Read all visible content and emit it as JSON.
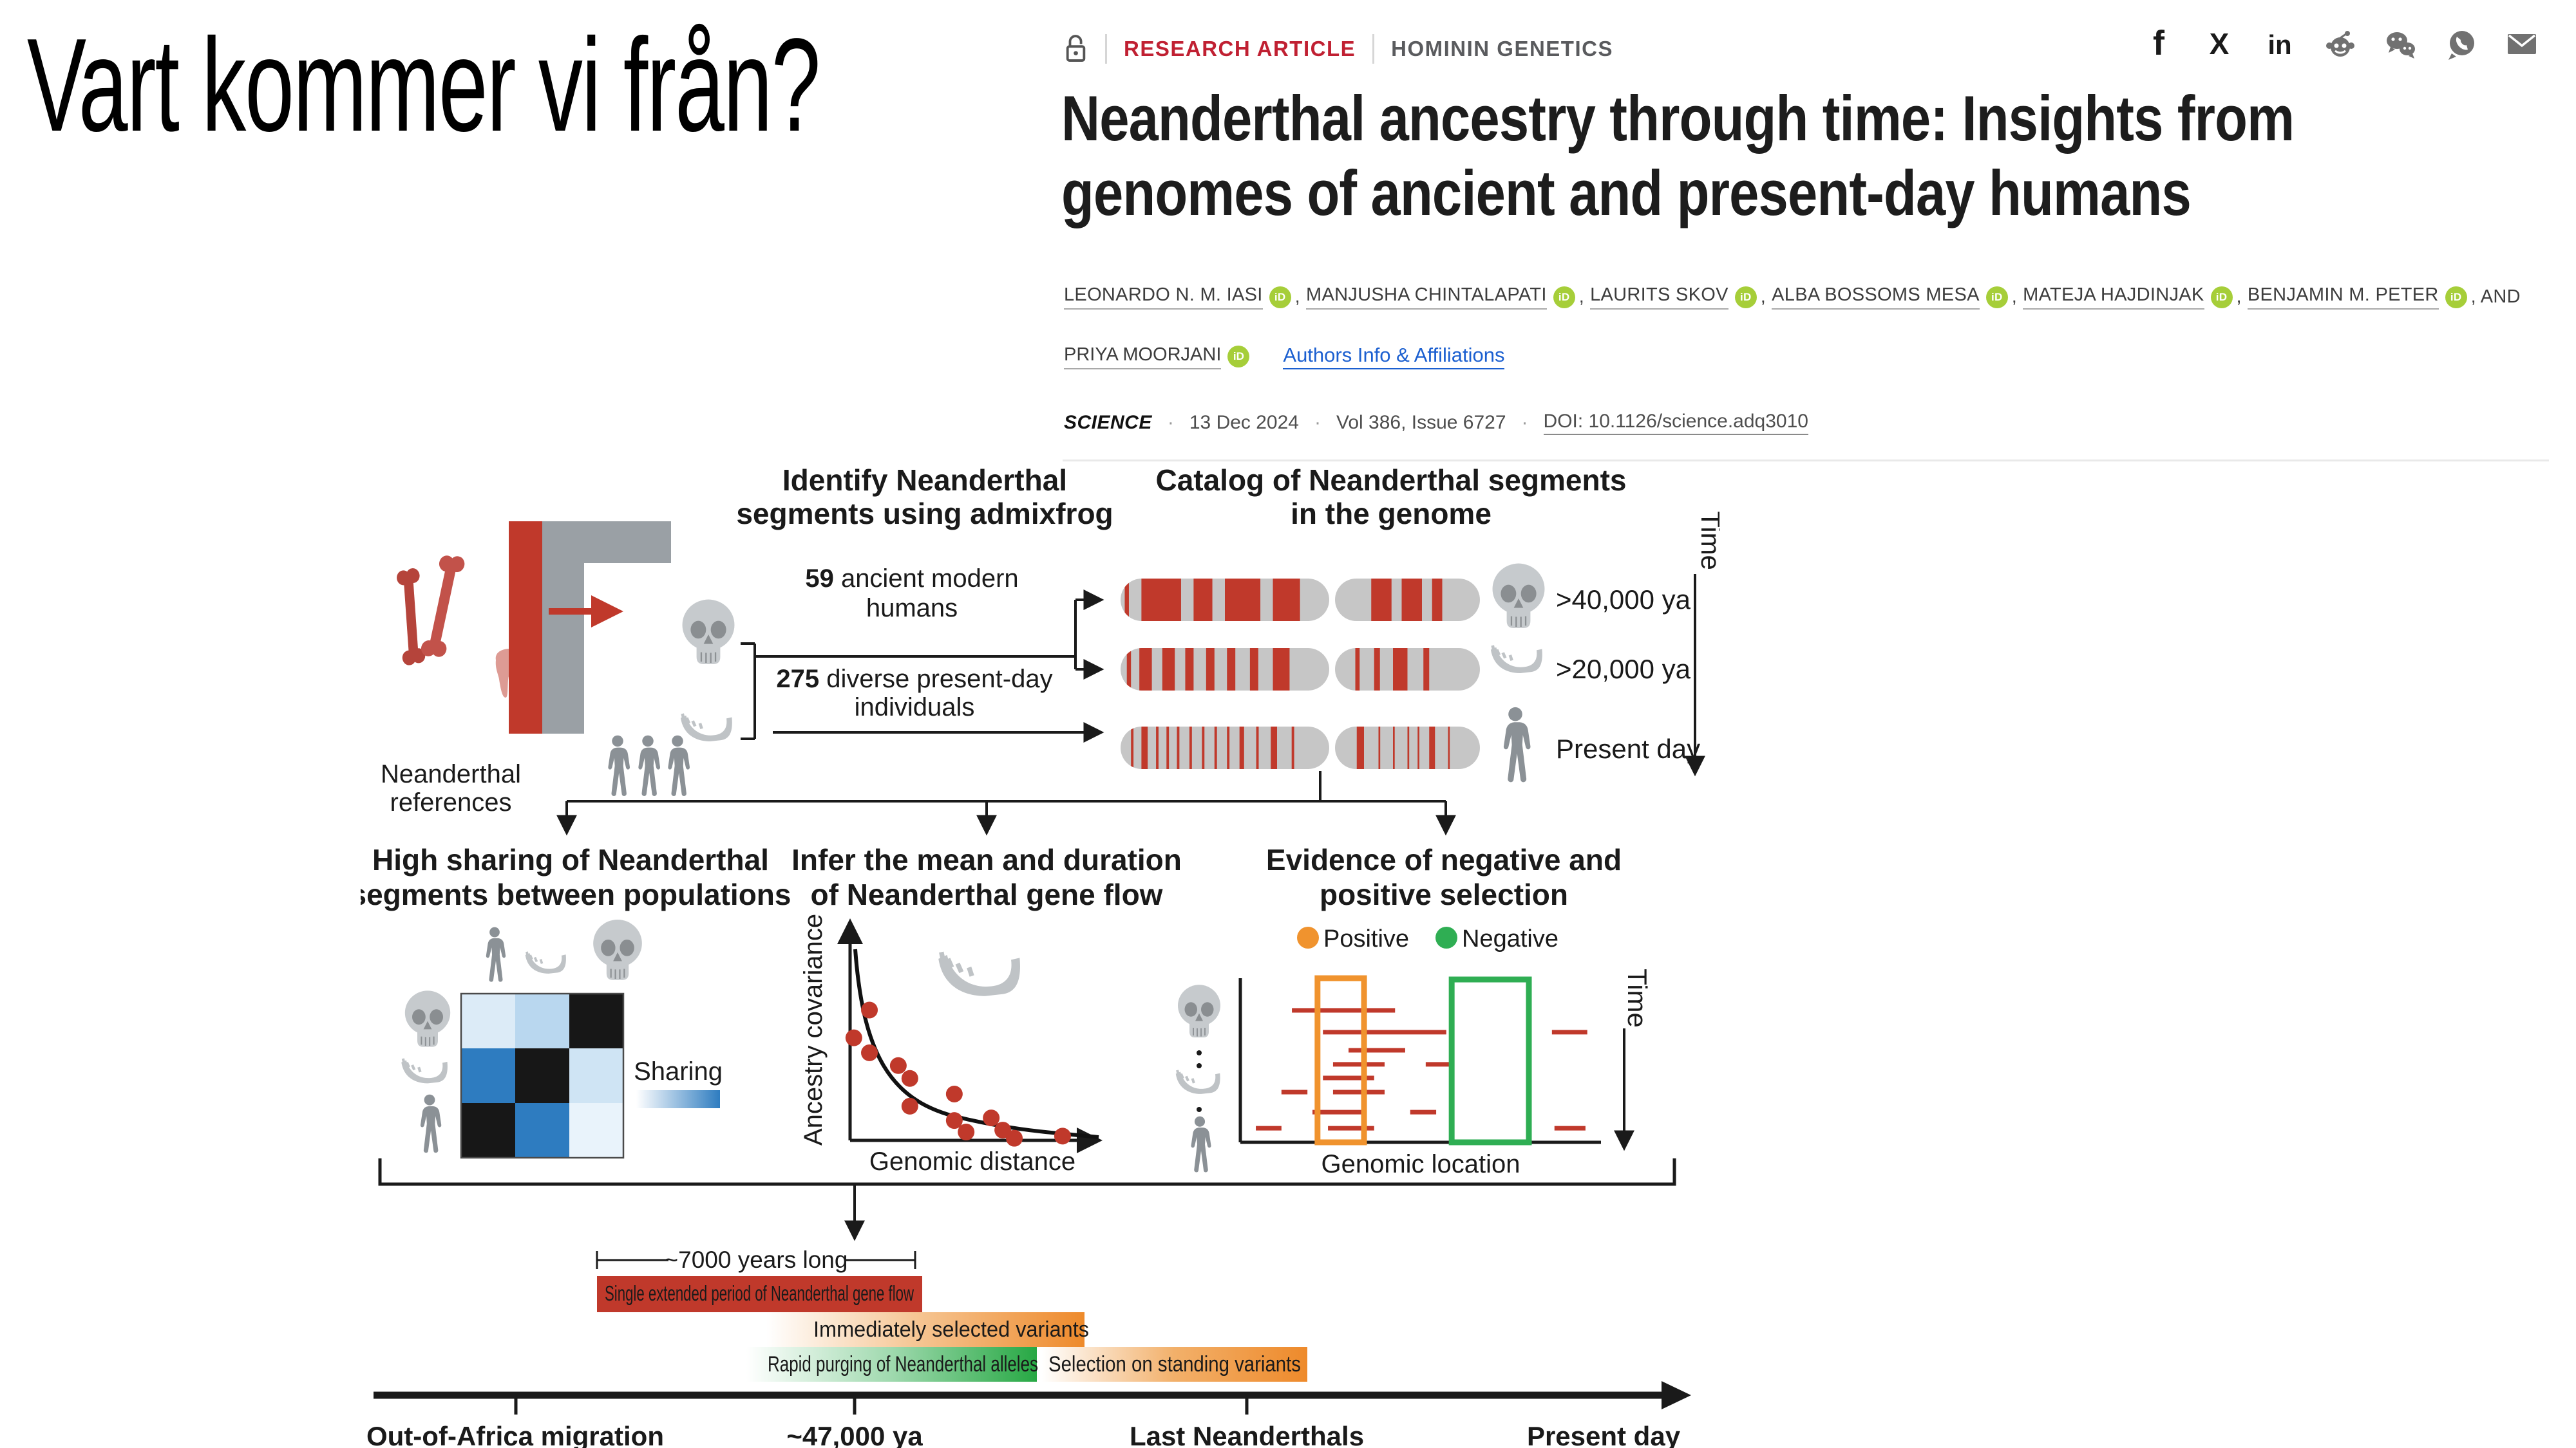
{
  "slide": {
    "title": "Vart kommer vi från?"
  },
  "article": {
    "badge": "RESEARCH ARTICLE",
    "section": "HOMININ GENETICS",
    "title_line1": "Neanderthal ancestry through time: Insights from",
    "title_line2": "genomes of ancient and present-day humans",
    "authors": [
      "LEONARDO N. M. IASI",
      "MANJUSHA CHINTALAPATI",
      "LAURITS SKOV",
      "ALBA BOSSOMS MESA",
      "MATEJA HAJDINJAK",
      "BENJAMIN M. PETER",
      "PRIYA MOORJANI"
    ],
    "author_sep": ",",
    "author_and": ", AND",
    "orcid_label": "iD",
    "orcid_color": "#a6ce39",
    "affiliations_link": "Authors Info & Affiliations",
    "journal": "SCIENCE",
    "date": "13 Dec 2024",
    "volume": "Vol 386, Issue 6727",
    "doi": "DOI: 10.1126/science.adq3010",
    "meta_dot": "·",
    "badge_color": "#c02032",
    "social_icons": [
      "facebook-icon",
      "x-icon",
      "linkedin-icon",
      "reddit-icon",
      "wechat-icon",
      "whatsapp-icon",
      "email-icon"
    ]
  },
  "figure": {
    "refs_label_l1": "Neanderthal",
    "refs_label_l2": "references",
    "identify_l1": "Identify Neanderthal",
    "identify_l2": "segments using admixfrog",
    "group59_count": "59",
    "group59_rest": " ancient modern",
    "group59_l2": "humans",
    "group275_count": "275",
    "group275_rest": " diverse present-day",
    "group275_l2": "individuals",
    "catalog_l1": "Catalog of Neanderthal segments",
    "catalog_l2": "in the genome",
    "time_label": "Time",
    "band_color": "#c0392b",
    "chromosome_color": "#c6c6c6",
    "catalog_rows": [
      {
        "age": ">40,000 ya",
        "icon": "skull",
        "bands_a": [
          [
            0.02,
            0.04
          ],
          [
            0.1,
            0.29
          ],
          [
            0.35,
            0.44
          ],
          [
            0.5,
            0.67
          ],
          [
            0.73,
            0.86
          ]
        ],
        "bands_b": [
          [
            0.25,
            0.39
          ],
          [
            0.46,
            0.6
          ],
          [
            0.67,
            0.74
          ]
        ]
      },
      {
        "age": ">20,000 ya",
        "icon": "jaw",
        "bands_a": [
          [
            0.03,
            0.05
          ],
          [
            0.09,
            0.15
          ],
          [
            0.2,
            0.26
          ],
          [
            0.31,
            0.35
          ],
          [
            0.41,
            0.45
          ],
          [
            0.51,
            0.55
          ],
          [
            0.62,
            0.66
          ],
          [
            0.73,
            0.81
          ]
        ],
        "bands_b": [
          [
            0.14,
            0.17
          ],
          [
            0.27,
            0.31
          ],
          [
            0.4,
            0.5
          ],
          [
            0.61,
            0.65
          ]
        ]
      },
      {
        "age": "Present day",
        "icon": "person",
        "bands_a": [
          [
            0.05,
            0.062
          ],
          [
            0.1,
            0.13
          ],
          [
            0.17,
            0.182
          ],
          [
            0.22,
            0.232
          ],
          [
            0.27,
            0.282
          ],
          [
            0.33,
            0.342
          ],
          [
            0.39,
            0.402
          ],
          [
            0.45,
            0.462
          ],
          [
            0.51,
            0.522
          ],
          [
            0.57,
            0.592
          ],
          [
            0.65,
            0.662
          ],
          [
            0.72,
            0.75
          ],
          [
            0.82,
            0.832
          ]
        ],
        "bands_b": [
          [
            0.15,
            0.2
          ],
          [
            0.3,
            0.312
          ],
          [
            0.4,
            0.412
          ],
          [
            0.5,
            0.512
          ],
          [
            0.57,
            0.582
          ],
          [
            0.65,
            0.69
          ],
          [
            0.78,
            0.792
          ]
        ]
      }
    ],
    "panel1": {
      "title_l1": "High sharing of Neanderthal",
      "title_l2": "segments between populations",
      "legend": "Sharing",
      "heatmap": [
        [
          "#dcebf7",
          "#b9d7ef",
          "#171717"
        ],
        [
          "#2e7cc0",
          "#171717",
          "#cfe4f4"
        ],
        [
          "#171717",
          "#2e7cc0",
          "#e9f3fb"
        ]
      ],
      "row_icons": [
        "skull",
        "jaw",
        "person"
      ],
      "col_icons": [
        "person",
        "jaw",
        "skull"
      ]
    },
    "panel2": {
      "title_l1": "Infer the mean and duration",
      "title_l2": "of  Neanderthal gene flow",
      "ylabel": "Ancestry covariance",
      "xlabel": "Genomic distance",
      "dot_color": "#c0392b",
      "points": [
        [
          0.077,
          0.61
        ],
        [
          0.015,
          0.48
        ],
        [
          0.077,
          0.41
        ],
        [
          0.192,
          0.35
        ],
        [
          0.238,
          0.29
        ],
        [
          0.415,
          0.217
        ],
        [
          0.238,
          0.16
        ],
        [
          0.415,
          0.093
        ],
        [
          0.462,
          0.039
        ],
        [
          0.562,
          0.105
        ],
        [
          0.608,
          0.048
        ],
        [
          0.654,
          0.01
        ],
        [
          0.846,
          0.02
        ]
      ]
    },
    "panel3": {
      "title_l1": "Evidence of negative and",
      "title_l2": "positive selection",
      "legend_positive": "Positive",
      "legend_negative": "Negative",
      "positive_color": "#f0932e",
      "negative_color": "#2fae53",
      "segment_color": "#c0392b",
      "xlabel": "Genomic location",
      "boxes": {
        "positive": [
          0.214,
          0.343
        ],
        "negative": [
          0.586,
          0.8
        ]
      },
      "segments": [
        {
          "y": 0.196,
          "spans": [
            [
              0.143,
              0.429
            ]
          ]
        },
        {
          "y": 0.329,
          "spans": [
            [
              0.229,
              0.571
            ],
            [
              0.864,
              0.962
            ]
          ]
        },
        {
          "y": 0.439,
          "spans": [
            [
              0.3,
              0.457
            ]
          ]
        },
        {
          "y": 0.525,
          "spans": [
            [
              0.257,
              0.4
            ],
            [
              0.514,
              0.586
            ]
          ]
        },
        {
          "y": 0.608,
          "spans": [
            [
              0.229,
              0.371
            ]
          ]
        },
        {
          "y": 0.694,
          "spans": [
            [
              0.114,
              0.186
            ],
            [
              0.257,
              0.4
            ]
          ]
        },
        {
          "y": 0.816,
          "spans": [
            [
              0.2,
              0.343
            ],
            [
              0.471,
              0.543
            ]
          ]
        },
        {
          "y": 0.914,
          "spans": [
            [
              0.043,
              0.114
            ],
            [
              0.243,
              0.371
            ],
            [
              0.871,
              0.957
            ]
          ]
        }
      ]
    },
    "timeline": {
      "duration_label": "~7000 years long",
      "bar_red": "Single extended period of Neanderthal gene flow",
      "bar_orange1": "Immediately selected variants",
      "bar_green": "Rapid purging of Neanderthal alleles",
      "bar_orange2": "Selection on standing variants",
      "tick1": "Out-of-Africa migration",
      "tick2": "~47,000 ya",
      "tick3": "Last Neanderthals",
      "tick4": "Present day",
      "red_color": "#c0392b",
      "orange_color": "#ee8a2b",
      "green_color": "#27a844"
    }
  }
}
